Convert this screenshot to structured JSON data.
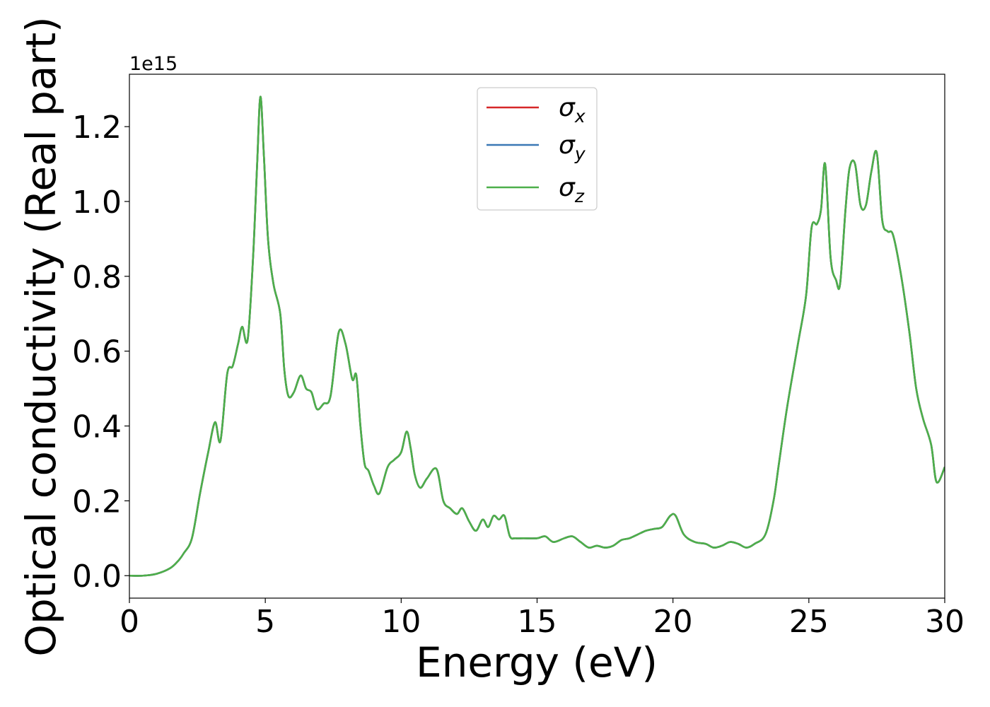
{
  "chart_data": {
    "type": "line",
    "xlabel": "Energy (eV)",
    "ylabel": "Optical conductivity (Real part)",
    "y_offset_text": "1e15",
    "y_scale_factor": 1000000000000000.0,
    "xlim": [
      0,
      30
    ],
    "ylim": [
      -0.06,
      1.34
    ],
    "x_ticks": [
      0,
      5,
      10,
      15,
      20,
      25,
      30
    ],
    "x_tick_labels": [
      "0",
      "5",
      "10",
      "15",
      "20",
      "25",
      "30"
    ],
    "y_ticks": [
      0.0,
      0.2,
      0.4,
      0.6,
      0.8,
      1.0,
      1.2
    ],
    "y_tick_labels": [
      "0.0",
      "0.2",
      "0.4",
      "0.6",
      "0.8",
      "1.0",
      "1.2"
    ],
    "grid": false,
    "legend_position": "top-center",
    "series": [
      {
        "name": "σx",
        "symbol": "σ",
        "subscript": "x",
        "color": "#d62728"
      },
      {
        "name": "σy",
        "symbol": "σ",
        "subscript": "y",
        "color": "#3a78b5"
      },
      {
        "name": "σz",
        "symbol": "σ",
        "subscript": "z",
        "color": "#4daf4a"
      }
    ],
    "x": [
      0,
      0.5,
      1.0,
      1.5,
      1.8,
      2.0,
      2.3,
      2.6,
      2.9,
      3.15,
      3.35,
      3.6,
      3.8,
      4.0,
      4.15,
      4.35,
      4.55,
      4.7,
      4.82,
      4.95,
      5.1,
      5.3,
      5.55,
      5.7,
      5.85,
      6.05,
      6.3,
      6.5,
      6.7,
      6.9,
      7.15,
      7.4,
      7.7,
      7.95,
      8.2,
      8.35,
      8.5,
      8.65,
      8.8,
      9.0,
      9.2,
      9.5,
      9.75,
      10.0,
      10.2,
      10.35,
      10.5,
      10.7,
      10.95,
      11.3,
      11.55,
      11.8,
      12.05,
      12.25,
      12.5,
      12.75,
      13.0,
      13.2,
      13.4,
      13.6,
      13.8,
      14.0,
      14.2,
      14.5,
      15.0,
      15.3,
      15.6,
      16.0,
      16.3,
      16.6,
      16.9,
      17.2,
      17.5,
      17.8,
      18.1,
      18.4,
      18.7,
      19.0,
      19.3,
      19.6,
      19.9,
      20.1,
      20.4,
      20.8,
      21.2,
      21.5,
      21.8,
      22.1,
      22.4,
      22.7,
      23.0,
      23.4,
      23.7,
      23.9,
      24.2,
      24.6,
      24.9,
      25.1,
      25.3,
      25.45,
      25.6,
      25.8,
      26.0,
      26.15,
      26.35,
      26.5,
      26.7,
      26.9,
      27.1,
      27.3,
      27.5,
      27.7,
      27.9,
      28.1,
      28.4,
      28.7,
      28.95,
      29.2,
      29.5,
      29.7,
      30.0
    ],
    "values": [
      0.0,
      0.0,
      0.005,
      0.02,
      0.04,
      0.06,
      0.1,
      0.22,
      0.33,
      0.41,
      0.36,
      0.54,
      0.56,
      0.62,
      0.665,
      0.63,
      0.85,
      1.1,
      1.28,
      1.12,
      0.9,
      0.78,
      0.7,
      0.55,
      0.48,
      0.49,
      0.535,
      0.5,
      0.49,
      0.445,
      0.46,
      0.48,
      0.65,
      0.62,
      0.525,
      0.535,
      0.4,
      0.3,
      0.28,
      0.24,
      0.22,
      0.29,
      0.31,
      0.33,
      0.385,
      0.34,
      0.27,
      0.235,
      0.26,
      0.285,
      0.2,
      0.18,
      0.165,
      0.18,
      0.145,
      0.12,
      0.15,
      0.13,
      0.16,
      0.15,
      0.16,
      0.105,
      0.1,
      0.1,
      0.1,
      0.105,
      0.09,
      0.1,
      0.105,
      0.09,
      0.075,
      0.08,
      0.075,
      0.08,
      0.095,
      0.1,
      0.11,
      0.12,
      0.125,
      0.13,
      0.16,
      0.16,
      0.11,
      0.09,
      0.085,
      0.075,
      0.08,
      0.09,
      0.085,
      0.075,
      0.085,
      0.11,
      0.2,
      0.3,
      0.45,
      0.62,
      0.75,
      0.93,
      0.94,
      0.98,
      1.1,
      0.85,
      0.79,
      0.78,
      0.98,
      1.09,
      1.1,
      0.99,
      0.99,
      1.08,
      1.13,
      0.95,
      0.92,
      0.91,
      0.8,
      0.65,
      0.5,
      0.42,
      0.35,
      0.25,
      0.29
    ]
  }
}
